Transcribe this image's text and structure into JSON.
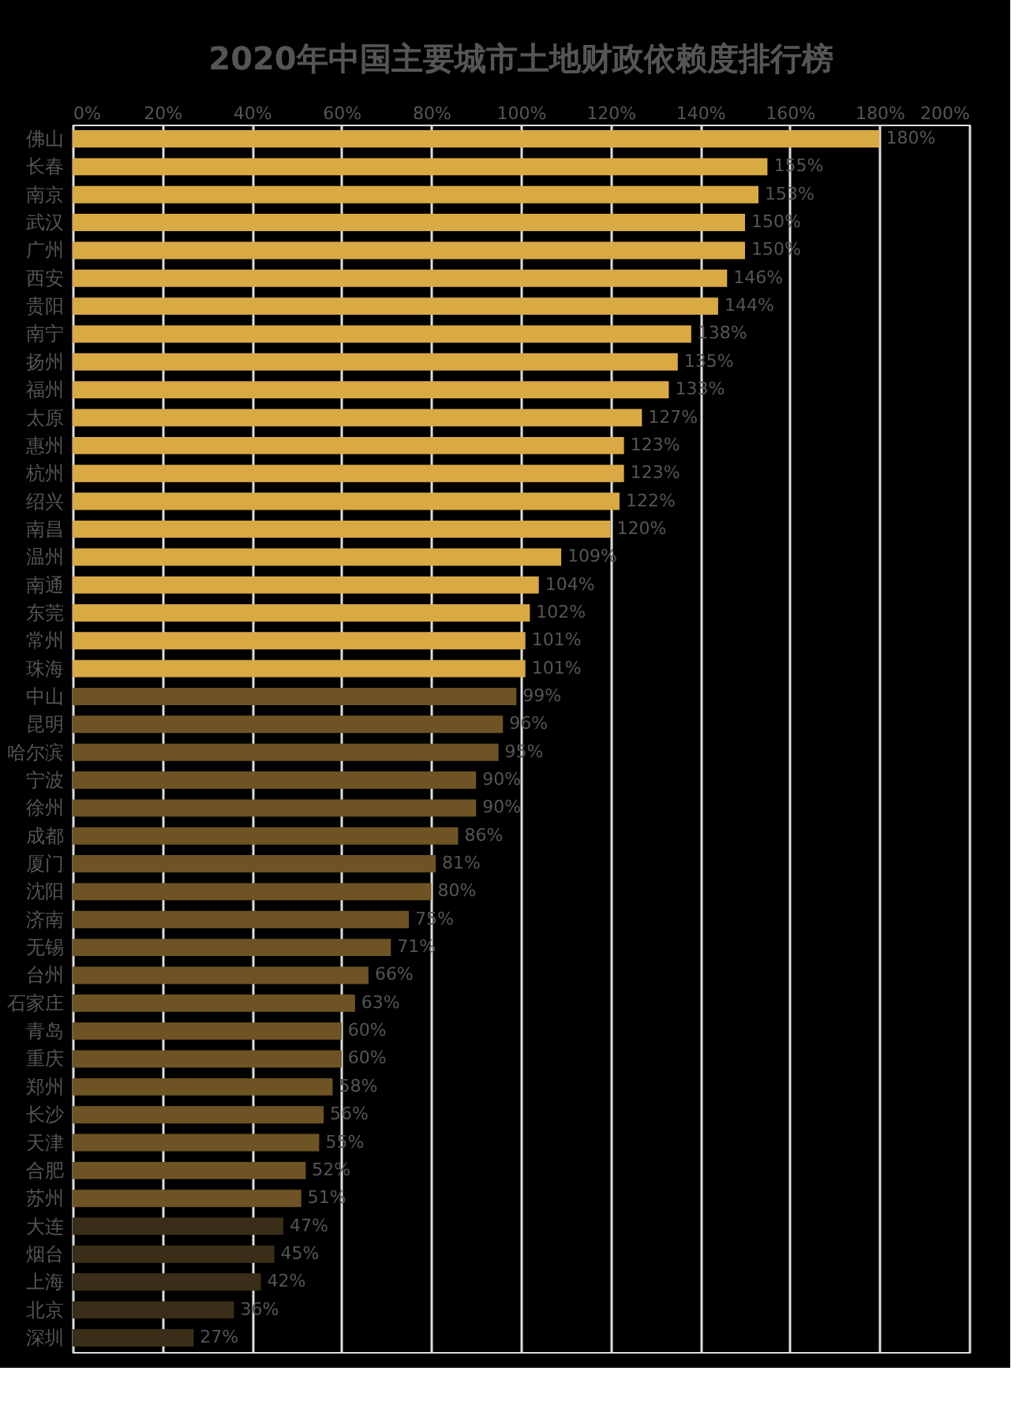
{
  "chart_data": {
    "type": "bar",
    "orientation": "horizontal",
    "title": "2020年中国主要城市土地财政依赖度排行榜",
    "categories": [
      "佛山",
      "长春",
      "南京",
      "武汉",
      "广州",
      "西安",
      "贵阳",
      "南宁",
      "扬州",
      "福州",
      "太原",
      "惠州",
      "杭州",
      "绍兴",
      "南昌",
      "温州",
      "南通",
      "东莞",
      "常州",
      "珠海",
      "中山",
      "昆明",
      "哈尔滨",
      "宁波",
      "徐州",
      "成都",
      "厦门",
      "沈阳",
      "济南",
      "无锡",
      "台州",
      "石家庄",
      "青岛",
      "重庆",
      "郑州",
      "长沙",
      "天津",
      "合肥",
      "苏州",
      "大连",
      "烟台",
      "上海",
      "北京",
      "深圳"
    ],
    "values": [
      180,
      155,
      153,
      150,
      150,
      146,
      144,
      138,
      135,
      133,
      127,
      123,
      123,
      122,
      120,
      109,
      104,
      102,
      101,
      101,
      99,
      96,
      95,
      90,
      90,
      86,
      81,
      80,
      75,
      71,
      66,
      63,
      60,
      60,
      58,
      56,
      55,
      52,
      51,
      47,
      45,
      42,
      36,
      27
    ],
    "value_labels": [
      "180%",
      "155%",
      "153%",
      "150%",
      "150%",
      "146%",
      "144%",
      "138%",
      "135%",
      "133%",
      "127%",
      "123%",
      "123%",
      "122%",
      "120%",
      "109%",
      "104%",
      "102%",
      "101%",
      "101%",
      "99%",
      "96%",
      "95%",
      "90%",
      "90%",
      "86%",
      "81%",
      "80%",
      "75%",
      "71%",
      "66%",
      "63%",
      "60%",
      "60%",
      "58%",
      "56%",
      "55%",
      "52%",
      "51%",
      "47%",
      "45%",
      "42%",
      "36%",
      "27%"
    ],
    "colors": [
      "#d9a944",
      "#d9a944",
      "#d9a944",
      "#d9a944",
      "#d9a944",
      "#d9a944",
      "#d9a944",
      "#d9a944",
      "#d9a944",
      "#d9a944",
      "#d9a944",
      "#d9a944",
      "#d9a944",
      "#d9a944",
      "#d9a944",
      "#d9a944",
      "#d9a944",
      "#d9a944",
      "#d9a944",
      "#d9a944",
      "#6e5424",
      "#6e5424",
      "#6e5424",
      "#6e5424",
      "#6e5424",
      "#6e5424",
      "#6e5424",
      "#6e5424",
      "#6e5424",
      "#6e5424",
      "#6e5424",
      "#6e5424",
      "#6e5424",
      "#6e5424",
      "#6e5424",
      "#6e5424",
      "#6e5424",
      "#6e5424",
      "#6e5424",
      "#3a2e18",
      "#3a2e18",
      "#3a2e18",
      "#3a2e18",
      "#3a2e18"
    ],
    "xlim": [
      0,
      200
    ],
    "xticks": [
      {
        "value": 0,
        "label": "0%"
      },
      {
        "value": 20,
        "label": "20%"
      },
      {
        "value": 40,
        "label": "40%"
      },
      {
        "value": 60,
        "label": "60%"
      },
      {
        "value": 80,
        "label": "80%"
      },
      {
        "value": 100,
        "label": "100%"
      },
      {
        "value": 120,
        "label": "120%"
      },
      {
        "value": 140,
        "label": "140%"
      },
      {
        "value": 160,
        "label": "160%"
      },
      {
        "value": 180,
        "label": "180%"
      },
      {
        "value": 200,
        "label": "200%"
      }
    ],
    "grid": "x"
  }
}
